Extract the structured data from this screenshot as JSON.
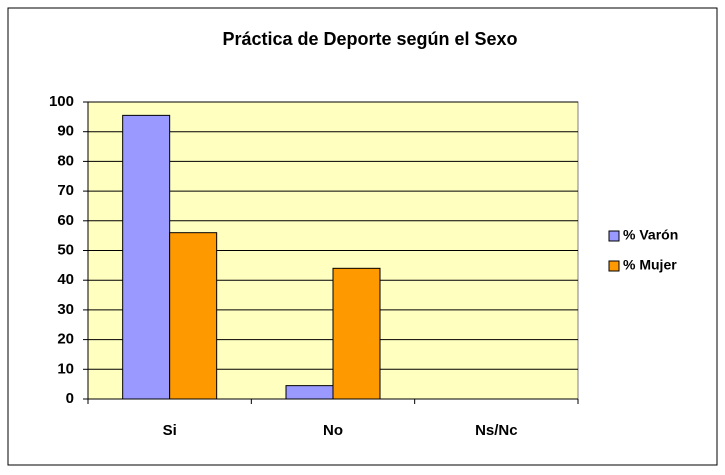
{
  "chart_data": {
    "type": "bar",
    "title": "Práctica de Deporte según el Sexo",
    "categories": [
      "Si",
      "No",
      "Ns/Nc"
    ],
    "series": [
      {
        "name": "% Varón",
        "color": "#9999ff",
        "values": [
          95.5,
          4.5,
          0
        ]
      },
      {
        "name": "% Mujer",
        "color": "#ff9900",
        "values": [
          56,
          44,
          0
        ]
      }
    ],
    "ylim": [
      0,
      100
    ],
    "yticks": [
      0,
      10,
      20,
      30,
      40,
      50,
      60,
      70,
      80,
      90,
      100
    ],
    "grid": true,
    "legend": "right",
    "plot_background": "#ffffc0"
  }
}
